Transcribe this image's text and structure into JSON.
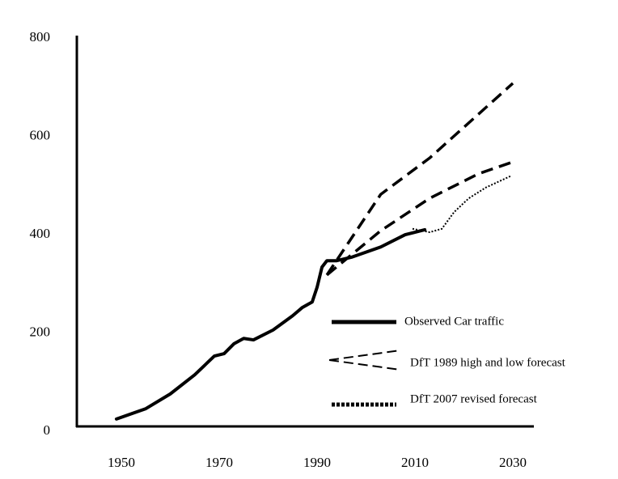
{
  "chart_data": {
    "type": "line",
    "xlim": [
      1941,
      2034
    ],
    "xticks": [
      1950,
      1970,
      1990,
      2010,
      2030
    ],
    "ylim": [
      0,
      800
    ],
    "yticks": [
      0,
      200,
      400,
      600,
      800
    ],
    "grid": false,
    "legend": "lower right",
    "series": [
      {
        "name": "Observed Car traffic",
        "color": "#000000",
        "style": "solid",
        "lines": [
          {
            "x": [
              1949,
              1955,
              1960,
              1965,
              1969,
              1971,
              1973,
              1975,
              1977,
              1981,
              1985,
              1987,
              1989,
              1990,
              1991,
              1992,
              1994,
              1997,
              2003,
              2008,
              2012
            ],
            "values": [
              20,
              41,
              71,
              110,
              148,
              153,
              173,
              184,
              181,
              201,
              230,
              247,
              258,
              288,
              329,
              342,
              342,
              349,
              370,
              395,
              405
            ]
          }
        ]
      },
      {
        "name": "DfT 1989 high and low forecast",
        "color": "#000000",
        "style": "dashed",
        "lines": [
          {
            "x": [
              1992,
              2003,
              2013,
              2030
            ],
            "values": [
              313,
              477,
              551,
              703
            ]
          },
          {
            "x": [
              1992,
              2003,
              2013,
              2023,
              2030
            ],
            "values": [
              313,
              403,
              469,
              519,
              543
            ]
          }
        ]
      },
      {
        "name": "DfT 2007 revised forecast",
        "color": "#000000",
        "style": "dotted",
        "lines": [
          {
            "x": [
              2009.5,
              2013,
              2015.5,
              2018,
              2021,
              2024.5,
              2029.5
            ],
            "values": [
              407,
              400,
              407,
              441,
              469,
              491,
              514
            ]
          }
        ]
      }
    ]
  }
}
